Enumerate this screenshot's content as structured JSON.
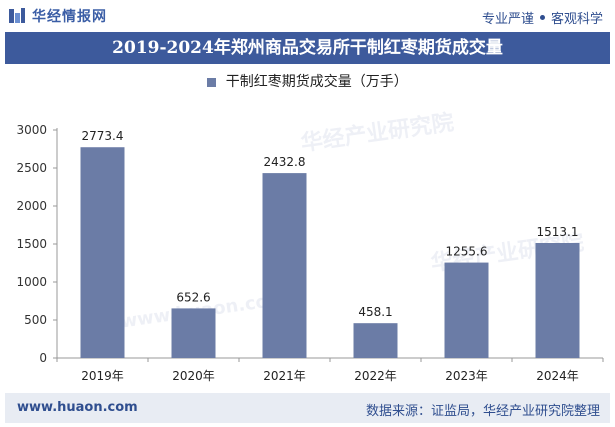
{
  "header": {
    "brand_name": "华经情报网",
    "tagline_left": "专业严谨",
    "tagline_right": "客观科学"
  },
  "chart_data": {
    "type": "bar",
    "title": "2019-2024年郑州商品交易所干制红枣期货成交量",
    "categories": [
      "2019年",
      "2020年",
      "2021年",
      "2022年",
      "2023年",
      "2024年"
    ],
    "series": [
      {
        "name": "干制红枣期货成交量（万手）",
        "values": [
          2773.4,
          652.6,
          2432.8,
          458.1,
          1255.6,
          1513.1
        ]
      }
    ],
    "data_labels": [
      "2773.4",
      "652.6",
      "2432.8",
      "458.1",
      "1255.6",
      "1513.1"
    ],
    "ylim": [
      0,
      3000
    ],
    "yticks": [
      0,
      500,
      1000,
      1500,
      2000,
      2500,
      3000
    ],
    "ytick_labels": [
      "0",
      "500",
      "1000",
      "1500",
      "2000",
      "2500",
      "3000"
    ],
    "legend_position": "top",
    "grid": false,
    "bar_color": "#6b7ca6"
  },
  "watermark": {
    "cn": "华经产业研究院",
    "en": "www.huaon.com"
  },
  "footer": {
    "url": "www.huaon.com",
    "source": "数据来源：证监局，华经产业研究院整理"
  },
  "colors": {
    "title_bg": "#3d5a9c",
    "accent": "#2f4e8f",
    "footer_bg": "#e8ecf3"
  }
}
